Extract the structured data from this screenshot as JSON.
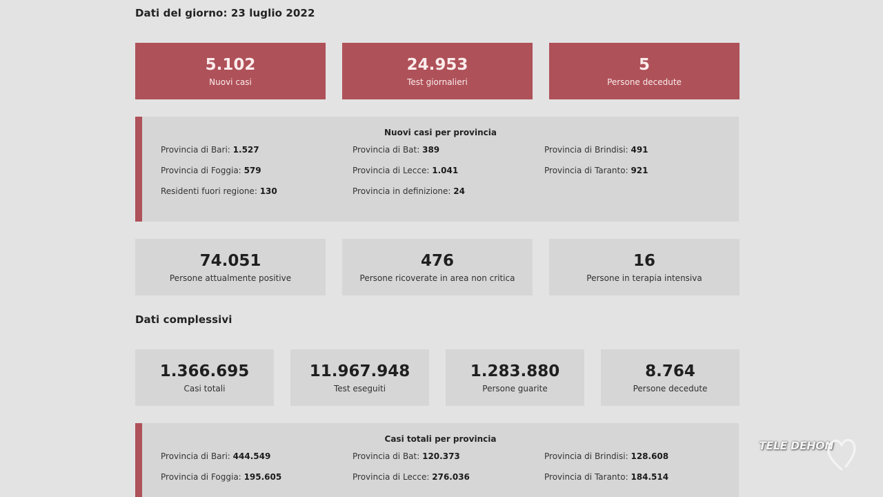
{
  "daily": {
    "title": "Dati del giorno: 23 luglio 2022",
    "top_cards": [
      {
        "value": "5.102",
        "label": "Nuovi casi"
      },
      {
        "value": "24.953",
        "label": "Test giornalieri"
      },
      {
        "value": "5",
        "label": "Persone decedute"
      }
    ],
    "provinces": {
      "title": "Nuovi casi per provincia",
      "items": [
        {
          "label": "Provincia di Bari:",
          "value": "1.527"
        },
        {
          "label": "Provincia di Bat:",
          "value": "389"
        },
        {
          "label": "Provincia di Brindisi:",
          "value": "491"
        },
        {
          "label": "Provincia di Foggia:",
          "value": "579"
        },
        {
          "label": "Provincia di Lecce:",
          "value": "1.041"
        },
        {
          "label": "Provincia di Taranto:",
          "value": "921"
        },
        {
          "label": "Residenti fuori regione:",
          "value": "130"
        },
        {
          "label": "Provincia in definizione:",
          "value": "24"
        }
      ]
    },
    "status_cards": [
      {
        "value": "74.051",
        "label": "Persone attualmente positive"
      },
      {
        "value": "476",
        "label": "Persone ricoverate in area non critica"
      },
      {
        "value": "16",
        "label": "Persone in terapia intensiva"
      }
    ]
  },
  "total": {
    "title": "Dati complessivi",
    "cards": [
      {
        "value": "1.366.695",
        "label": "Casi totali"
      },
      {
        "value": "11.967.948",
        "label": "Test eseguiti"
      },
      {
        "value": "1.283.880",
        "label": "Persone guarite"
      },
      {
        "value": "8.764",
        "label": "Persone decedute"
      }
    ],
    "provinces": {
      "title": "Casi totali per provincia",
      "items": [
        {
          "label": "Provincia di Bari:",
          "value": "444.549"
        },
        {
          "label": "Provincia di Bat:",
          "value": "120.373"
        },
        {
          "label": "Provincia di Brindisi:",
          "value": "128.608"
        },
        {
          "label": "Provincia di Foggia:",
          "value": "195.605"
        },
        {
          "label": "Provincia di Lecce:",
          "value": "276.036"
        },
        {
          "label": "Provincia di Taranto:",
          "value": "184.514"
        }
      ]
    }
  },
  "watermark": {
    "text": "TELE DEHON",
    "icon": "heart-icon"
  },
  "colors": {
    "accent": "#af5159",
    "card_grey": "#d6d6d6",
    "background": "#e3e3e3"
  }
}
